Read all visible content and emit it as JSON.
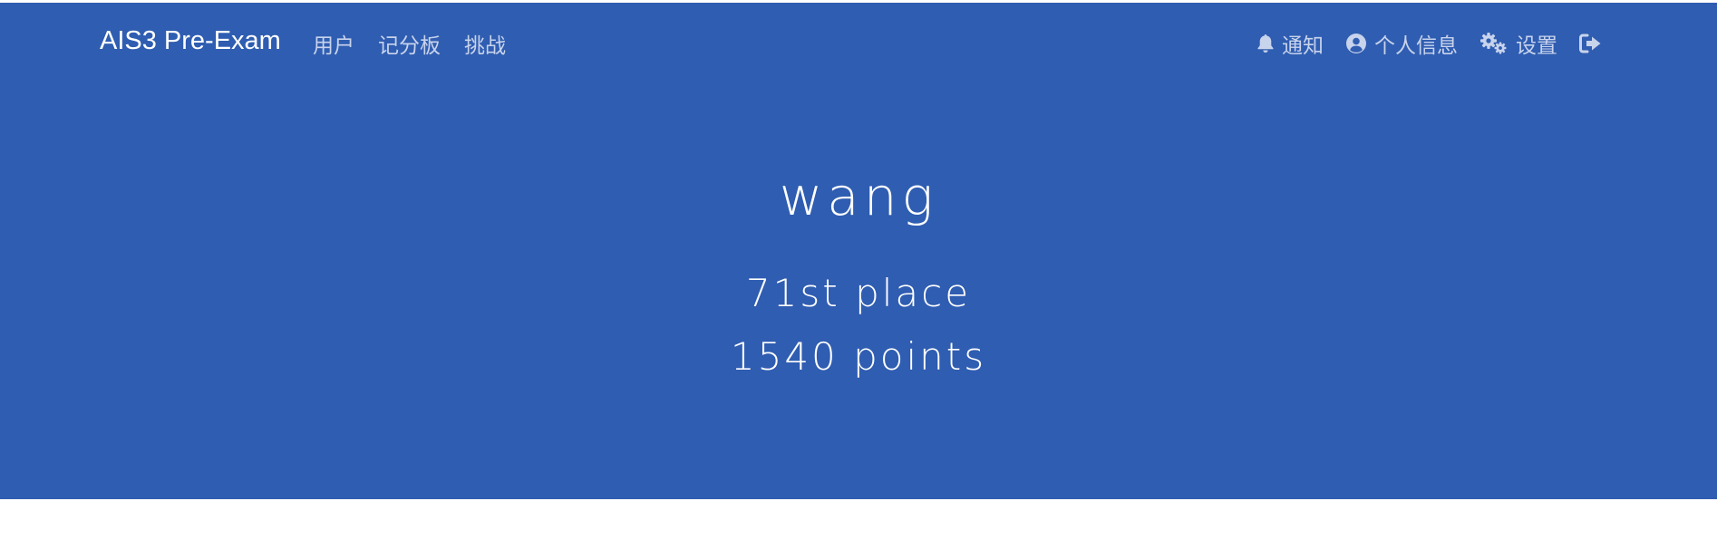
{
  "navbar": {
    "brand": "AIS3 Pre-Exam",
    "links": [
      {
        "label": "用户"
      },
      {
        "label": "记分板"
      },
      {
        "label": "挑战"
      }
    ],
    "right": {
      "notifications_label": "通知",
      "profile_label": "个人信息",
      "settings_label": "设置"
    },
    "icons": [
      "bell-icon",
      "user-circle-icon",
      "gears-icon",
      "logout-icon"
    ]
  },
  "profile": {
    "username": "wang",
    "place": "71st place",
    "points": "1540 points"
  },
  "colors": {
    "hero_background": "#2f5db1",
    "nav_text": "#c8d3ec",
    "text_primary": "#ffffff",
    "page_background": "#ffffff"
  }
}
